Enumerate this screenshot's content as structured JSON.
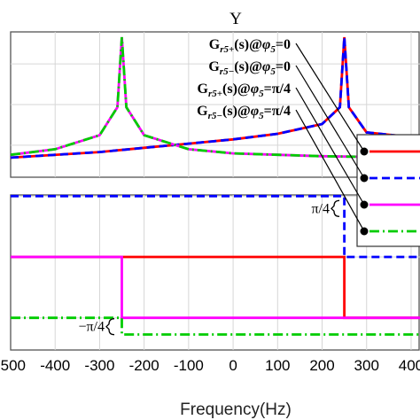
{
  "chart_data": [
    {
      "panel": "magnitude",
      "type": "line",
      "title": "Y",
      "xlim": [
        -500,
        420
      ],
      "grid": true,
      "series": [
        {
          "color": "#ff0000",
          "style": "solid",
          "x": [
            -500,
            -300,
            -200,
            -100,
            0,
            100,
            200,
            240,
            250,
            260,
            300,
            420
          ],
          "y": [
            0.14,
            0.18,
            0.21,
            0.24,
            0.27,
            0.31,
            0.38,
            0.5,
            1.0,
            0.5,
            0.32,
            0.28
          ]
        },
        {
          "color": "#0000ff",
          "style": "dash",
          "x": [
            -500,
            -300,
            -200,
            -100,
            0,
            100,
            200,
            240,
            250,
            260,
            300,
            420
          ],
          "y": [
            0.14,
            0.18,
            0.21,
            0.24,
            0.27,
            0.31,
            0.38,
            0.5,
            1.0,
            0.5,
            0.32,
            0.28
          ]
        },
        {
          "color": "#ff00ff",
          "style": "solid",
          "x": [
            -500,
            -400,
            -300,
            -260,
            -250,
            -240,
            -200,
            -100,
            0,
            100,
            200,
            420
          ],
          "y": [
            0.16,
            0.2,
            0.3,
            0.5,
            1.0,
            0.5,
            0.3,
            0.2,
            0.17,
            0.16,
            0.15,
            0.14
          ]
        },
        {
          "color": "#00cc00",
          "style": "dashdot",
          "x": [
            -500,
            -400,
            -300,
            -260,
            -250,
            -240,
            -200,
            -100,
            0,
            100,
            200,
            420
          ],
          "y": [
            0.16,
            0.2,
            0.3,
            0.5,
            1.0,
            0.5,
            0.3,
            0.2,
            0.17,
            0.16,
            0.15,
            0.14
          ]
        }
      ],
      "legend": {
        "placement": "top-right",
        "entries": [
          {
            "main": "G",
            "sub": "r5+",
            "arg": "(s)@",
            "phi": "φ",
            "phisub": "5",
            "val": "=0"
          },
          {
            "main": "G",
            "sub": "r5−",
            "arg": "(s)@",
            "phi": "φ",
            "phisub": "5",
            "val": "=0"
          },
          {
            "main": "G",
            "sub": "r5+",
            "arg": "(s)@",
            "phi": "φ",
            "phisub": "5",
            "val": "=π/4"
          },
          {
            "main": "G",
            "sub": "r5−",
            "arg": "(s)@",
            "phi": "φ",
            "phisub": "5",
            "val": "=π/4"
          }
        ]
      }
    },
    {
      "panel": "phase",
      "type": "line",
      "xlabel": "Frequency(Hz)",
      "xlim": [
        -500,
        420
      ],
      "xticks": [
        "-500",
        "-400",
        "-300",
        "-200",
        "-100",
        "0",
        "100",
        "200",
        "300",
        "400"
      ],
      "xtick_values": [
        -500,
        -400,
        -300,
        -200,
        -100,
        0,
        100,
        200,
        300,
        400
      ],
      "ylim": [
        -1.2,
        0.8
      ],
      "grid": true,
      "annotations": [
        {
          "text": "π/4",
          "y": 0.785
        },
        {
          "text": "−π/4",
          "y": -0.785
        }
      ],
      "series": [
        {
          "color": "#ff0000",
          "style": "solid",
          "x": [
            -500,
            -250,
            -250,
            250,
            250,
            420
          ],
          "y": [
            0,
            0,
            0,
            0,
            -0.785,
            -0.785
          ]
        },
        {
          "color": "#0000ff",
          "style": "dash",
          "x": [
            -500,
            250,
            250,
            420
          ],
          "y": [
            0.785,
            0.785,
            0,
            0
          ]
        },
        {
          "color": "#ff00ff",
          "style": "solid",
          "x": [
            -500,
            -250,
            -250,
            420
          ],
          "y": [
            0,
            0,
            -0.785,
            -0.785
          ]
        },
        {
          "color": "#00cc00",
          "style": "dashdot",
          "x": [
            -500,
            -250,
            -250,
            420
          ],
          "y": [
            -0.785,
            -0.785,
            -1.0,
            -1.0
          ]
        }
      ]
    }
  ]
}
